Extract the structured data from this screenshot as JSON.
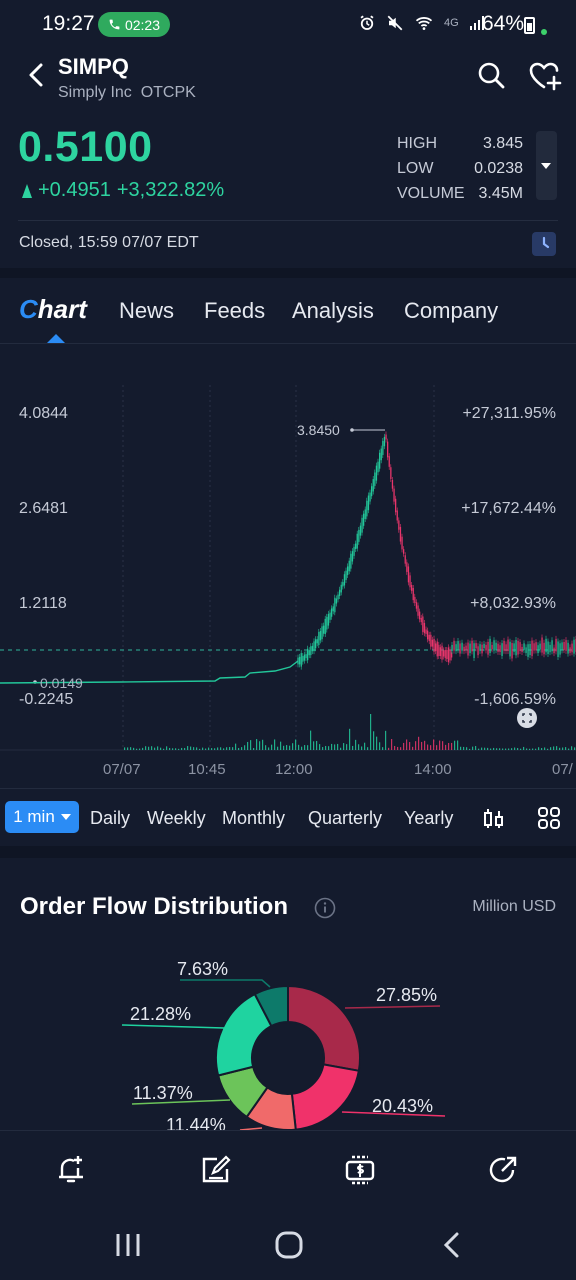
{
  "status_bar": {
    "time": "19:27",
    "call_timer": "02:23",
    "network": "4G",
    "battery": "64%",
    "icons": [
      "alarm-icon",
      "mute-icon",
      "wifi-icon",
      "signal-icon",
      "battery-icon"
    ]
  },
  "header": {
    "ticker": "SIMPQ",
    "company": "Simply Inc",
    "exchange": "OTCPK"
  },
  "quote": {
    "price": "0.5100",
    "change": "+0.4951",
    "change_pct": "+3,322.82%",
    "high_label": "HIGH",
    "high_value": "3.845",
    "low_label": "LOW",
    "low_value": "0.0238",
    "volume_label": "VOLUME",
    "volume_value": "3.45M",
    "market_status": "Closed, 15:59 07/07 EDT"
  },
  "tabs": {
    "chart_c": "C",
    "chart_rest": "hart",
    "news": "News",
    "feeds": "Feeds",
    "analysis": "Analysis",
    "company": "Company"
  },
  "chart": {
    "price_labels": [
      "4.0844",
      "2.6481",
      "1.2118",
      "-0.2245"
    ],
    "pct_labels": [
      "+27,311.95%",
      "+17,672.44%",
      "+8,032.93%",
      "-1,606.59%"
    ],
    "peak_label": "3.8450",
    "low_marker": "0.0149",
    "time_labels": [
      "07/07",
      "10:45",
      "12:00",
      "14:00",
      "07/"
    ],
    "colors": {
      "up": "#22c79a",
      "down": "#e8356b",
      "prev_close": "#2fb69a"
    }
  },
  "period_bar": {
    "interval": "1 min",
    "periods": [
      "Daily",
      "Weekly",
      "Monthly",
      "Quarterly",
      "Yearly"
    ]
  },
  "order_flow": {
    "title": "Order Flow Distribution",
    "unit": "Million USD",
    "slices": [
      {
        "label": "27.85%",
        "value": 27.85,
        "color": "#a8294a"
      },
      {
        "label": "20.43%",
        "value": 20.43,
        "color": "#f0326a"
      },
      {
        "label": "11.44%",
        "value": 11.44,
        "color": "#f06a6a"
      },
      {
        "label": "11.37%",
        "value": 11.37,
        "color": "#6cc45a"
      },
      {
        "label": "21.28%",
        "value": 21.28,
        "color": "#1fd3a0"
      },
      {
        "label": "7.63%",
        "value": 7.63,
        "color": "#0d7a6a"
      }
    ]
  },
  "bottom_nav": {
    "icons": [
      "alert-add-icon",
      "note-edit-icon",
      "trade-icon",
      "share-icon"
    ]
  }
}
